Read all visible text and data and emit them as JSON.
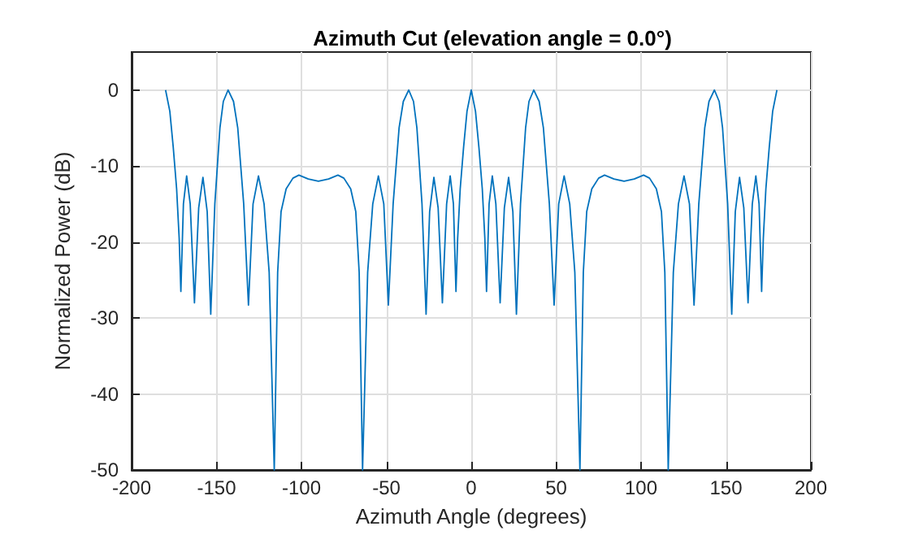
{
  "chart_data": {
    "type": "line",
    "title": "Azimuth Cut (elevation angle = 0.0°)",
    "xlabel": "Azimuth Angle (degrees)",
    "ylabel": "Normalized Power (dB)",
    "xlim": [
      -200,
      200
    ],
    "xticks": [
      -200,
      -150,
      -100,
      -50,
      0,
      50,
      100,
      150,
      200
    ],
    "ylim": [
      -50,
      5
    ],
    "yticks": [
      -50,
      -40,
      -30,
      -20,
      -10,
      0
    ],
    "grid": true,
    "marker": "none",
    "line_style": "solid",
    "x": [
      -180,
      -177.5,
      -175.5,
      -173.5,
      -172,
      -171,
      -169.5,
      -167.6,
      -165.5,
      -163,
      -160.5,
      -158,
      -155.5,
      -153.4,
      -151,
      -148,
      -146,
      -143.2,
      -140,
      -137.5,
      -134,
      -131.2,
      -128.5,
      -125.3,
      -122,
      -119,
      -116,
      -114,
      -112,
      -109,
      -105,
      -101.5,
      -96,
      -90,
      -84,
      -78.5,
      -75,
      -71,
      -68,
      -66,
      -64,
      -61,
      -58,
      -54.7,
      -51.5,
      -48.8,
      -46,
      -42.5,
      -40,
      -36.8,
      -34,
      -32,
      -29,
      -26.6,
      -24.5,
      -22,
      -19.5,
      -17,
      -14.5,
      -12.4,
      -10.5,
      -9,
      -8,
      -6.5,
      -4.5,
      -2.5,
      0,
      2.5,
      4.5,
      6.5,
      8,
      9,
      10.5,
      12.4,
      14.5,
      17,
      19.5,
      22,
      24.5,
      26.6,
      29,
      32,
      34,
      36.8,
      40,
      42.5,
      46,
      48.8,
      51.5,
      54.7,
      58,
      61,
      64,
      66,
      68,
      71,
      75,
      78.5,
      84,
      90,
      96,
      101.5,
      105,
      109,
      112,
      114,
      116,
      119,
      122,
      125.3,
      128.5,
      131.2,
      134,
      137.5,
      140,
      143.2,
      146,
      148,
      151,
      153.4,
      155.5,
      158,
      160.5,
      163,
      165.5,
      167.6,
      169.5,
      171,
      172,
      173.5,
      175.5,
      177.5,
      180
    ],
    "series": [
      {
        "color": "#0072bd",
        "values": [
          0,
          -2.8,
          -7.5,
          -13,
          -19.5,
          -26.5,
          -15,
          -11.3,
          -15,
          -28,
          -15.5,
          -11.5,
          -16,
          -29.5,
          -15,
          -5,
          -1.5,
          0,
          -1.5,
          -5,
          -15,
          -28.3,
          -15,
          -11.3,
          -15,
          -24,
          -50,
          -24,
          -16,
          -13,
          -11.6,
          -11.2,
          -11.7,
          -12,
          -11.7,
          -11.2,
          -11.6,
          -13,
          -16,
          -24,
          -50,
          -24,
          -15,
          -11.3,
          -15,
          -28.3,
          -15,
          -5,
          -1.5,
          0,
          -1.5,
          -5,
          -15,
          -29.5,
          -16,
          -11.5,
          -15.5,
          -28,
          -15,
          -11.3,
          -15,
          -26.5,
          -19.5,
          -13,
          -7.5,
          -2.8,
          0,
          -2.8,
          -7.5,
          -13,
          -19.5,
          -26.5,
          -15,
          -11.3,
          -15,
          -28,
          -15.5,
          -11.5,
          -16,
          -29.5,
          -15,
          -5,
          -1.5,
          0,
          -1.5,
          -5,
          -15,
          -28.3,
          -15,
          -11.3,
          -15,
          -24,
          -50,
          -24,
          -16,
          -13,
          -11.6,
          -11.2,
          -11.7,
          -12,
          -11.7,
          -11.2,
          -11.6,
          -13,
          -16,
          -24,
          -50,
          -24,
          -15,
          -11.3,
          -15,
          -28.3,
          -15,
          -5,
          -1.5,
          0,
          -1.5,
          -5,
          -15,
          -29.5,
          -16,
          -11.5,
          -15.5,
          -28,
          -15,
          -11.3,
          -15,
          -26.5,
          -19.5,
          -13,
          -7.5,
          -2.8,
          0
        ]
      }
    ]
  }
}
